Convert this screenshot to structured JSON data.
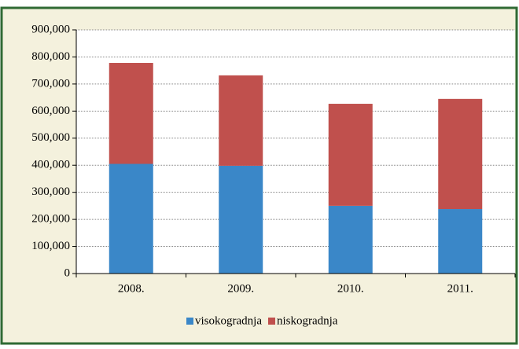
{
  "chart_data": {
    "type": "stacked_bar",
    "categories": [
      "2008.",
      "2009.",
      "2010.",
      "2011."
    ],
    "series": [
      {
        "name": "visokogradnja",
        "color": "#3a87c8",
        "values": [
          405000,
          398000,
          250000,
          238000
        ]
      },
      {
        "name": "niskogradnja",
        "color": "#c0504d",
        "values": [
          373000,
          334000,
          377000,
          407000
        ]
      }
    ],
    "ylim": [
      0,
      900000
    ],
    "yticks": [
      0,
      {
        "value": 100000,
        "label": "100,000"
      },
      {
        "value": 200000,
        "label": "200,000"
      },
      {
        "value": 300000,
        "label": "300,000"
      },
      {
        "value": 400000,
        "label": "400,000"
      },
      {
        "value": 500000,
        "label": "500,000"
      },
      {
        "value": 600000,
        "label": "600,000"
      },
      {
        "value": 700000,
        "label": "700,000"
      },
      {
        "value": 800000,
        "label": "800,000"
      },
      {
        "value": 900000,
        "label": "900,000"
      }
    ],
    "grid": true,
    "legend": "bottom"
  }
}
